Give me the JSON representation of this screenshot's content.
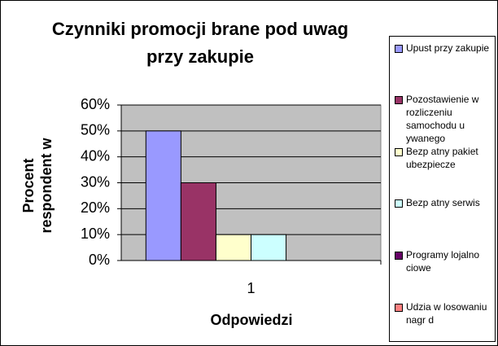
{
  "chart_data": {
    "type": "bar",
    "title": "Czynniki promocji brane pod uwag przy zakupie",
    "y_label": "Procent respondent w",
    "x_label": "Odpowiedzi",
    "categories": [
      "1"
    ],
    "series": [
      {
        "name": "Upust przy zakupie",
        "color": "#9999ff",
        "values": [
          50
        ]
      },
      {
        "name": "Pozostawienie w rozliczeniu samochodu u ywanego",
        "color": "#993366",
        "values": [
          30
        ]
      },
      {
        "name": "Bezp atny pakiet ubezpiecze",
        "color": "#ffffcc",
        "values": [
          10
        ]
      },
      {
        "name": "Bezp atny serwis",
        "color": "#ccffff",
        "values": [
          10
        ]
      },
      {
        "name": "Programy lojalno ciowe",
        "color": "#660066",
        "values": [
          0
        ]
      },
      {
        "name": "Udzia w losowaniu nagr d",
        "color": "#ff8080",
        "values": [
          0
        ]
      }
    ],
    "ylim": [
      0,
      60
    ],
    "yticks": [
      {
        "value": 0,
        "label": "0%"
      },
      {
        "value": 10,
        "label": "10%"
      },
      {
        "value": 20,
        "label": "20%"
      },
      {
        "value": 30,
        "label": "30%"
      },
      {
        "value": 40,
        "label": "40%"
      },
      {
        "value": 50,
        "label": "50%"
      },
      {
        "value": 60,
        "label": "60%"
      }
    ],
    "grid": true,
    "legend": "right"
  }
}
